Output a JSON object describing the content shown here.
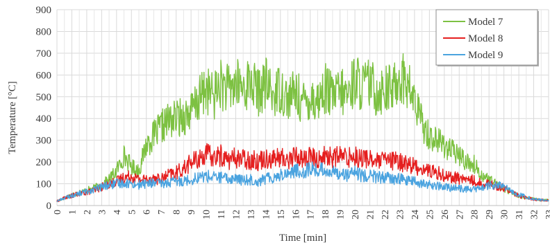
{
  "chart_data": {
    "type": "line",
    "title": "",
    "xlabel": "Time [min]",
    "ylabel": "Temperature [°C]",
    "xlim": [
      0,
      33
    ],
    "ylim": [
      0,
      900
    ],
    "x_ticks": [
      "0",
      "1",
      "2",
      "3",
      "4",
      "5",
      "6",
      "7",
      "8",
      "9",
      "10",
      "11",
      "12",
      "13",
      "14",
      "15",
      "16",
      "17",
      "18",
      "19",
      "20",
      "21",
      "22",
      "23",
      "24",
      "25",
      "26",
      "27",
      "28",
      "29",
      "30",
      "31",
      "32",
      "33"
    ],
    "y_ticks": [
      "0",
      "100",
      "200",
      "300",
      "400",
      "500",
      "600",
      "700",
      "800",
      "900"
    ],
    "grid": true,
    "legend_position": "top-right",
    "x": [
      0,
      0.5,
      1,
      1.5,
      2,
      2.5,
      3,
      3.5,
      4,
      4.5,
      5,
      5.5,
      6,
      6.5,
      7,
      7.5,
      8,
      8.5,
      9,
      9.5,
      10,
      10.5,
      11,
      11.5,
      12,
      12.5,
      13,
      13.5,
      14,
      14.5,
      15,
      15.5,
      16,
      16.5,
      17,
      17.5,
      18,
      18.5,
      19,
      19.5,
      20,
      20.5,
      21,
      21.5,
      22,
      22.5,
      23,
      23.5,
      24,
      24.5,
      25,
      25.5,
      26,
      26.5,
      27,
      27.5,
      28,
      28.5,
      29,
      29.5,
      30,
      30.5,
      31,
      31.5,
      32,
      32.5,
      33
    ],
    "series": [
      {
        "name": "Model 7",
        "color": "#7dc142",
        "values": [
          20,
          35,
          50,
          60,
          70,
          80,
          95,
          120,
          160,
          230,
          180,
          160,
          280,
          320,
          360,
          390,
          400,
          410,
          430,
          480,
          540,
          500,
          560,
          530,
          560,
          540,
          570,
          520,
          560,
          510,
          540,
          490,
          520,
          470,
          500,
          480,
          540,
          500,
          520,
          510,
          580,
          550,
          560,
          520,
          540,
          530,
          600,
          560,
          480,
          380,
          320,
          300,
          280,
          250,
          230,
          200,
          190,
          140,
          120,
          95,
          80,
          60,
          45,
          35,
          30,
          25,
          25
        ]
      },
      {
        "name": "Model 8",
        "color": "#e51f1f",
        "values": [
          20,
          35,
          45,
          55,
          60,
          70,
          85,
          100,
          110,
          130,
          135,
          120,
          120,
          125,
          120,
          140,
          150,
          170,
          200,
          210,
          240,
          220,
          230,
          210,
          220,
          215,
          210,
          205,
          220,
          215,
          220,
          210,
          230,
          215,
          225,
          210,
          230,
          220,
          230,
          220,
          230,
          215,
          220,
          200,
          210,
          205,
          200,
          195,
          180,
          170,
          160,
          150,
          140,
          130,
          125,
          120,
          115,
          100,
          100,
          90,
          80,
          60,
          45,
          35,
          30,
          25,
          25
        ]
      },
      {
        "name": "Model 9",
        "color": "#4aa3df",
        "values": [
          20,
          35,
          45,
          55,
          65,
          75,
          85,
          95,
          100,
          105,
          100,
          95,
          100,
          105,
          100,
          105,
          110,
          115,
          120,
          130,
          135,
          130,
          130,
          120,
          125,
          115,
          120,
          110,
          125,
          130,
          140,
          150,
          160,
          155,
          170,
          160,
          165,
          150,
          155,
          140,
          150,
          135,
          140,
          130,
          130,
          120,
          125,
          115,
          110,
          100,
          95,
          90,
          85,
          80,
          80,
          75,
          75,
          80,
          90,
          95,
          85,
          65,
          50,
          40,
          30,
          25,
          25
        ]
      }
    ]
  }
}
